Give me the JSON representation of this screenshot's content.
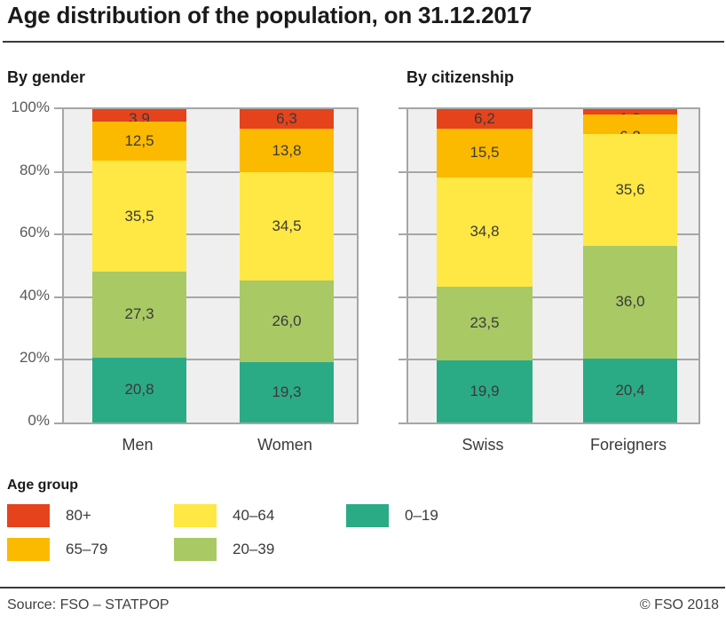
{
  "title": "Age distribution of the population, on 31.12.2017",
  "chart_data": [
    {
      "type": "bar",
      "stacked": true,
      "title": "By gender",
      "categories": [
        "Men",
        "Women"
      ],
      "series": [
        {
          "name": "80+",
          "color": "#e5431c",
          "values": [
            3.9,
            6.3
          ]
        },
        {
          "name": "65–79",
          "color": "#fbba00",
          "values": [
            12.5,
            13.8
          ]
        },
        {
          "name": "40–64",
          "color": "#ffe843",
          "values": [
            35.5,
            34.5
          ]
        },
        {
          "name": "20–39",
          "color": "#a9c964",
          "values": [
            27.3,
            26.0
          ]
        },
        {
          "name": "0–19",
          "color": "#2bab85",
          "values": [
            20.8,
            19.3
          ]
        }
      ],
      "value_label_format": "decimal-comma",
      "ylim": [
        0,
        100
      ],
      "yticks": [
        "100%",
        "80%",
        "60%",
        "40%",
        "20%",
        "0%"
      ],
      "show_y_labels": true,
      "grid": true,
      "plot_background": "#efefef"
    },
    {
      "type": "bar",
      "stacked": true,
      "title": "By citizenship",
      "categories": [
        "Swiss",
        "Foreigners"
      ],
      "series": [
        {
          "name": "80+",
          "color": "#e5431c",
          "values": [
            6.2,
            1.8
          ]
        },
        {
          "name": "65–79",
          "color": "#fbba00",
          "values": [
            15.5,
            6.2
          ]
        },
        {
          "name": "40–64",
          "color": "#ffe843",
          "values": [
            34.8,
            35.6
          ]
        },
        {
          "name": "20–39",
          "color": "#a9c964",
          "values": [
            23.5,
            36.0
          ]
        },
        {
          "name": "0–19",
          "color": "#2bab85",
          "values": [
            19.9,
            20.4
          ]
        }
      ],
      "value_label_format": "decimal-comma",
      "ylim": [
        0,
        100
      ],
      "yticks": [
        "100%",
        "80%",
        "60%",
        "40%",
        "20%",
        "0%"
      ],
      "show_y_labels": false,
      "grid": true,
      "plot_background": "#efefef"
    }
  ],
  "legend": {
    "title": "Age group",
    "items": [
      {
        "label": "80+",
        "color": "#e5431c"
      },
      {
        "label": "65–79",
        "color": "#fbba00"
      },
      {
        "label": "40–64",
        "color": "#ffe843"
      },
      {
        "label": "20–39",
        "color": "#a9c964"
      },
      {
        "label": "0–19",
        "color": "#2bab85"
      }
    ]
  },
  "footer": {
    "source": "Source: FSO – STATPOP",
    "copyright": "© FSO 2018"
  }
}
